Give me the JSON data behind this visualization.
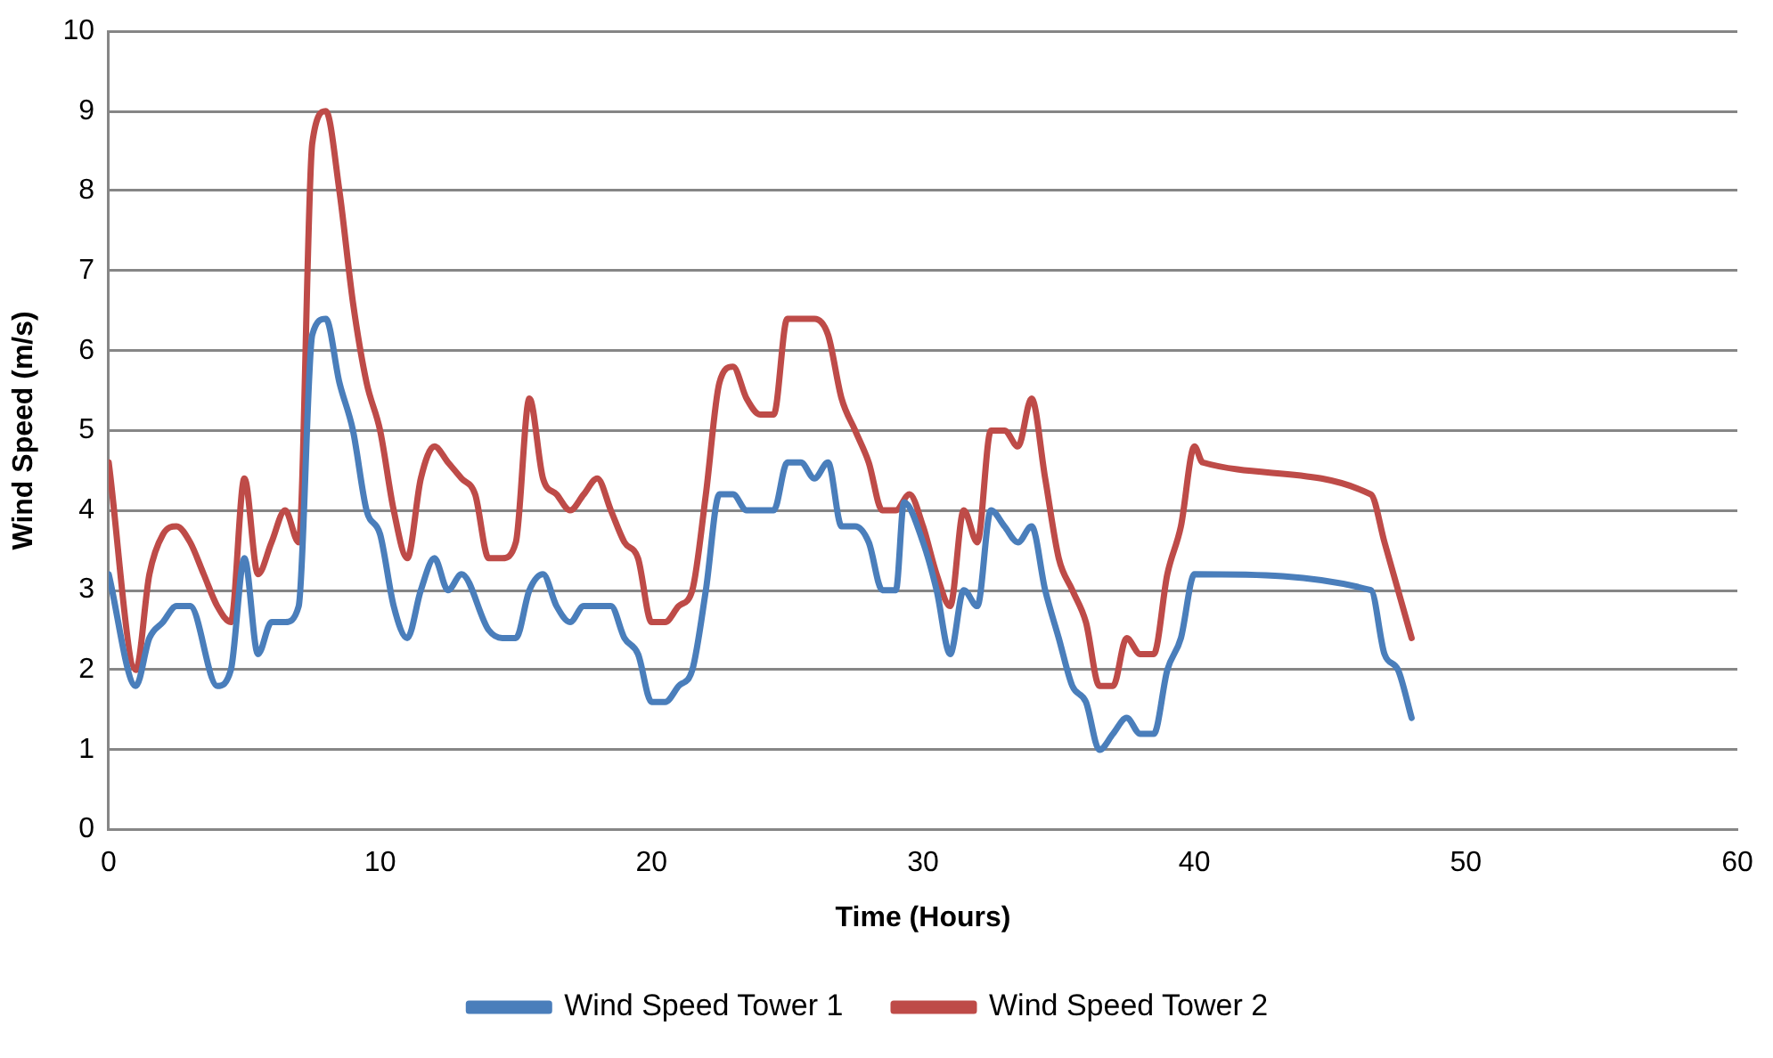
{
  "chart_data": {
    "type": "line",
    "xlabel": "Time (Hours)",
    "ylabel": "Wind Speed (m/s)",
    "xlim": [
      0,
      60
    ],
    "xticks": [
      0,
      10,
      20,
      30,
      40,
      50,
      60
    ],
    "ylim": [
      0,
      10
    ],
    "yticks": [
      0,
      1,
      2,
      3,
      4,
      5,
      6,
      7,
      8,
      9,
      10
    ],
    "grid": "y",
    "legend": "bottom",
    "marker": "none",
    "line_style": "solid",
    "series": [
      {
        "name": "Wind Speed Tower 1",
        "color": "#4a7ebb",
        "x": [
          0,
          1,
          1.5,
          2,
          2.5,
          3,
          4,
          4.5,
          5,
          5.5,
          6,
          6.5,
          7,
          7.5,
          8,
          8.5,
          9,
          9.5,
          10,
          10.5,
          11,
          11.5,
          12,
          12.5,
          13,
          14,
          14.5,
          15,
          15.5,
          16,
          16.5,
          17,
          17.5,
          18,
          18.5,
          19,
          19.5,
          20,
          20.5,
          21,
          21.5,
          22,
          22.5,
          23,
          23.5,
          24,
          24.5,
          25,
          25.5,
          26,
          26.5,
          27,
          27.5,
          28,
          28.5,
          29,
          29.3,
          30,
          30.5,
          31,
          31.5,
          32,
          32.5,
          33,
          33.5,
          34,
          34.5,
          35,
          35.5,
          36,
          36.5,
          37,
          37.5,
          38,
          38.5,
          39,
          39.5,
          40,
          46.5,
          47,
          47.5,
          48
        ],
        "values": [
          3.2,
          1.8,
          2.4,
          2.6,
          2.8,
          2.8,
          1.8,
          2.0,
          3.4,
          2.2,
          2.6,
          2.6,
          2.8,
          6.2,
          6.4,
          5.6,
          5.0,
          4.0,
          3.7,
          2.8,
          2.4,
          3.0,
          3.4,
          3.0,
          3.2,
          2.5,
          2.4,
          2.4,
          3.0,
          3.2,
          2.8,
          2.6,
          2.8,
          2.8,
          2.8,
          2.4,
          2.2,
          1.6,
          1.6,
          1.8,
          2.0,
          3.0,
          4.2,
          4.2,
          4.0,
          4.0,
          4.0,
          4.6,
          4.6,
          4.4,
          4.6,
          3.8,
          3.8,
          3.6,
          3.0,
          3.0,
          4.1,
          3.6,
          3.0,
          2.2,
          3.0,
          2.8,
          4.0,
          3.8,
          3.6,
          3.8,
          3.0,
          2.4,
          1.8,
          1.6,
          1.0,
          1.2,
          1.4,
          1.2,
          1.2,
          2.0,
          2.4,
          3.2,
          3.0,
          2.2,
          2.0,
          1.4
        ]
      },
      {
        "name": "Wind Speed Tower 2",
        "color": "#be4b48",
        "x": [
          0,
          1,
          1.5,
          2,
          2.5,
          3,
          3.5,
          4,
          4.5,
          5,
          5.5,
          6,
          6.5,
          7,
          7.5,
          8,
          8.5,
          9,
          9.5,
          10,
          10.5,
          11,
          11.5,
          12,
          12.5,
          13,
          13.5,
          14,
          14.5,
          15,
          15.5,
          16,
          16.5,
          17,
          17.5,
          18,
          18.5,
          19,
          19.5,
          20,
          20.5,
          21,
          21.5,
          22,
          22.5,
          23,
          23.5,
          24,
          24.5,
          25,
          25.5,
          26,
          26.5,
          27,
          27.5,
          28,
          28.5,
          29,
          29.5,
          30,
          30.5,
          31,
          31.5,
          32,
          32.5,
          33,
          33.5,
          34,
          34.5,
          35,
          35.5,
          36,
          36.5,
          37,
          37.5,
          38,
          38.5,
          39,
          39.5,
          40,
          40.3,
          46.5,
          47,
          48
        ],
        "values": [
          4.6,
          2.0,
          3.2,
          3.7,
          3.8,
          3.6,
          3.2,
          2.8,
          2.6,
          4.4,
          3.2,
          3.6,
          4.0,
          3.6,
          8.6,
          9.0,
          8.0,
          6.6,
          5.6,
          5.0,
          4.0,
          3.4,
          4.4,
          4.8,
          4.6,
          4.4,
          4.2,
          3.4,
          3.4,
          3.6,
          5.4,
          4.4,
          4.2,
          4.0,
          4.2,
          4.4,
          4.0,
          3.6,
          3.4,
          2.6,
          2.6,
          2.8,
          3.0,
          4.2,
          5.6,
          5.8,
          5.4,
          5.2,
          5.2,
          6.4,
          6.4,
          6.4,
          6.2,
          5.4,
          5.0,
          4.6,
          4.0,
          4.0,
          4.2,
          3.8,
          3.2,
          2.8,
          4.0,
          3.6,
          5.0,
          5.0,
          4.8,
          5.4,
          4.4,
          3.4,
          3.0,
          2.6,
          1.8,
          1.8,
          2.4,
          2.2,
          2.2,
          3.2,
          3.8,
          4.8,
          4.6,
          4.2,
          3.6,
          2.4
        ]
      }
    ]
  }
}
